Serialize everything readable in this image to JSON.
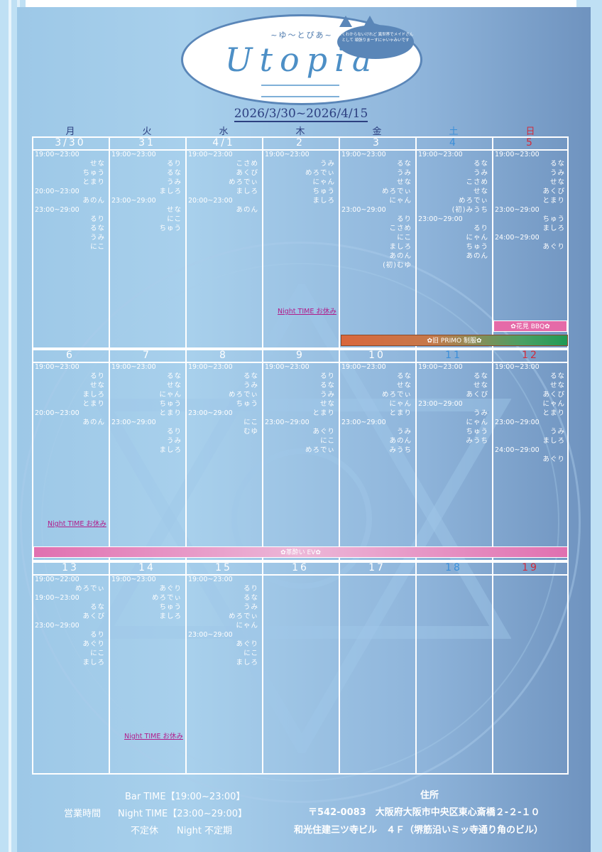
{
  "logo": {
    "subtitle": "~ゆ～とぴあ~",
    "name": "Utopia",
    "bubble_text": "よくわからないけれど 異世界でメイドさんとして 頑張りまーすにゃいゃみいです"
  },
  "date_range": "2026/3/30~2026/4/15",
  "weekdays": [
    "月",
    "火",
    "水",
    "木",
    "金",
    "土",
    "日"
  ],
  "colors": {
    "text_dark": "#2c3f80",
    "saturday": "#3b8fd9",
    "sunday": "#d22a3a",
    "note": "#b11b8a"
  },
  "weeks": [
    {
      "days": [
        {
          "num": "3/30",
          "entries": [
            [
              "t",
              "19:00~23:00"
            ],
            [
              "n",
              "せな"
            ],
            [
              "n",
              "ちゅう"
            ],
            [
              "n",
              "とまり"
            ],
            [
              "t",
              "20:00~23:00"
            ],
            [
              "n",
              "あのん"
            ],
            [
              "t",
              "23:00~29:00"
            ],
            [
              "n",
              "るり"
            ],
            [
              "n",
              "るな"
            ],
            [
              "n",
              "うみ"
            ],
            [
              "n",
              "にこ"
            ]
          ]
        },
        {
          "num": "31",
          "entries": [
            [
              "t",
              "19:00~23:00"
            ],
            [
              "n",
              "るり"
            ],
            [
              "n",
              "るな"
            ],
            [
              "n",
              "うみ"
            ],
            [
              "n",
              "ましろ"
            ],
            [
              "t",
              "23:00~29:00"
            ],
            [
              "n",
              "せな"
            ],
            [
              "n",
              "にこ"
            ],
            [
              "n",
              "ちゅう"
            ]
          ]
        },
        {
          "num": "4/1",
          "entries": [
            [
              "t",
              "19:00~23:00"
            ],
            [
              "n",
              "こさめ"
            ],
            [
              "n",
              "あくび"
            ],
            [
              "n",
              "めろでぃ"
            ],
            [
              "n",
              "ましろ"
            ],
            [
              "t",
              "20:00~23:00"
            ],
            [
              "n",
              "あのん"
            ]
          ]
        },
        {
          "num": "2",
          "entries": [
            [
              "t",
              "19:00~23:00"
            ],
            [
              "n",
              "うみ"
            ],
            [
              "n",
              "めろでぃ"
            ],
            [
              "n",
              "にゃん"
            ],
            [
              "n",
              "ちゅう"
            ],
            [
              "n",
              "ましろ"
            ]
          ]
        },
        {
          "num": "3",
          "entries": [
            [
              "t",
              "19:00~23:00"
            ],
            [
              "n",
              "るな"
            ],
            [
              "n",
              "うみ"
            ],
            [
              "n",
              "せな"
            ],
            [
              "n",
              "めろでぃ"
            ],
            [
              "n",
              "にゃん"
            ],
            [
              "t",
              "23:00~29:00"
            ],
            [
              "n",
              "るり"
            ],
            [
              "n",
              "こさめ"
            ],
            [
              "n",
              "にこ"
            ],
            [
              "n",
              "ましろ"
            ],
            [
              "n",
              "あのん"
            ],
            [
              "n",
              "(初)むゆ"
            ]
          ]
        },
        {
          "num": "4",
          "entries": [
            [
              "t",
              "19:00~23:00"
            ],
            [
              "n",
              "るな"
            ],
            [
              "n",
              "うみ"
            ],
            [
              "n",
              "こさめ"
            ],
            [
              "n",
              "せな"
            ],
            [
              "n",
              "めろでぃ"
            ],
            [
              "n",
              "(初)みうち"
            ],
            [
              "t",
              "23:00~29:00"
            ],
            [
              "n",
              "るり"
            ],
            [
              "n",
              "にゃん"
            ],
            [
              "n",
              "ちゅう"
            ],
            [
              "n",
              "あのん"
            ]
          ]
        },
        {
          "num": "5",
          "entries": [
            [
              "t",
              "19:00~23:00"
            ],
            [
              "n",
              "るな"
            ],
            [
              "n",
              "うみ"
            ],
            [
              "n",
              "せな"
            ],
            [
              "n",
              "あくび"
            ],
            [
              "n",
              "とまり"
            ],
            [
              "t",
              "23:00~29:00"
            ],
            [
              "n",
              "ちゅう"
            ],
            [
              "n",
              "ましろ"
            ],
            [
              "t",
              "24:00~29:00"
            ],
            [
              "n",
              "あぐり"
            ]
          ]
        }
      ]
    },
    {
      "days": [
        {
          "num": "6",
          "entries": [
            [
              "t",
              "19:00~23:00"
            ],
            [
              "n",
              "るり"
            ],
            [
              "n",
              "せな"
            ],
            [
              "n",
              "ましろ"
            ],
            [
              "n",
              "とまり"
            ],
            [
              "t",
              "20:00~23:00"
            ],
            [
              "n",
              "あのん"
            ]
          ]
        },
        {
          "num": "7",
          "entries": [
            [
              "t",
              "19:00~23:00"
            ],
            [
              "n",
              "るな"
            ],
            [
              "n",
              "せな"
            ],
            [
              "n",
              "にゃん"
            ],
            [
              "n",
              "ちゅう"
            ],
            [
              "n",
              "とまり"
            ],
            [
              "t",
              "23:00~29:00"
            ],
            [
              "n",
              "るり"
            ],
            [
              "n",
              "うみ"
            ],
            [
              "n",
              "ましろ"
            ]
          ]
        },
        {
          "num": "8",
          "entries": [
            [
              "t",
              "19:00~23:00"
            ],
            [
              "n",
              "るな"
            ],
            [
              "n",
              "うみ"
            ],
            [
              "n",
              "めろでぃ"
            ],
            [
              "n",
              "ちゅう"
            ],
            [
              "t",
              "23:00~29:00"
            ],
            [
              "n",
              "にこ"
            ],
            [
              "n",
              "むゆ"
            ]
          ]
        },
        {
          "num": "9",
          "entries": [
            [
              "t",
              "19:00~23:00"
            ],
            [
              "n",
              "るり"
            ],
            [
              "n",
              "るな"
            ],
            [
              "n",
              "うみ"
            ],
            [
              "n",
              "せな"
            ],
            [
              "n",
              "とまり"
            ],
            [
              "t",
              "23:00~29:00"
            ],
            [
              "n",
              "あぐり"
            ],
            [
              "n",
              "にこ"
            ],
            [
              "n",
              "めろでぃ"
            ]
          ]
        },
        {
          "num": "10",
          "entries": [
            [
              "t",
              "19:00~23:00"
            ],
            [
              "n",
              "るな"
            ],
            [
              "n",
              "せな"
            ],
            [
              "n",
              "めろでぃ"
            ],
            [
              "n",
              "にゃん"
            ],
            [
              "n",
              "とまり"
            ],
            [
              "t",
              "23:00~29:00"
            ],
            [
              "n",
              "うみ"
            ],
            [
              "n",
              "あのん"
            ],
            [
              "n",
              "みうち"
            ]
          ]
        },
        {
          "num": "11",
          "entries": [
            [
              "t",
              "19:00~23:00"
            ],
            [
              "n",
              "るな"
            ],
            [
              "n",
              "せな"
            ],
            [
              "n",
              "あくび"
            ],
            [
              "t",
              "23:00~29:00"
            ],
            [
              "n",
              "うみ"
            ],
            [
              "n",
              "にゃん"
            ],
            [
              "n",
              "ちゅう"
            ],
            [
              "n",
              "みうち"
            ]
          ]
        },
        {
          "num": "12",
          "entries": [
            [
              "t",
              "19:00~23:00"
            ],
            [
              "n",
              "るな"
            ],
            [
              "n",
              "せな"
            ],
            [
              "n",
              "あくび"
            ],
            [
              "n",
              "にゃん"
            ],
            [
              "n",
              "とまり"
            ],
            [
              "t",
              "23:00~29:00"
            ],
            [
              "n",
              "うみ"
            ],
            [
              "n",
              "ましろ"
            ],
            [
              "t",
              "24:00~29:00"
            ],
            [
              "n",
              "あぐり"
            ]
          ]
        }
      ]
    },
    {
      "days": [
        {
          "num": "13",
          "entries": [
            [
              "t",
              "19:00~22:00"
            ],
            [
              "n",
              "めろでぃ"
            ],
            [
              "t",
              "19:00~23:00"
            ],
            [
              "n",
              "るな"
            ],
            [
              "n",
              "あくび"
            ],
            [
              "t",
              "23:00~29:00"
            ],
            [
              "n",
              "るり"
            ],
            [
              "n",
              "あぐり"
            ],
            [
              "n",
              "にこ"
            ],
            [
              "n",
              "ましろ"
            ]
          ]
        },
        {
          "num": "14",
          "entries": [
            [
              "t",
              "19:00~23:00"
            ],
            [
              "n",
              "あぐり"
            ],
            [
              "n",
              "めろでぃ"
            ],
            [
              "n",
              "ちゅう"
            ],
            [
              "n",
              "ましろ"
            ]
          ]
        },
        {
          "num": "15",
          "entries": [
            [
              "t",
              "19:00~23:00"
            ],
            [
              "n",
              "るり"
            ],
            [
              "n",
              "るな"
            ],
            [
              "n",
              "うみ"
            ],
            [
              "n",
              "めろでぃ"
            ],
            [
              "n",
              "にゃん"
            ],
            [
              "t",
              "23:00~29:00"
            ],
            [
              "n",
              "あぐり"
            ],
            [
              "n",
              "にこ"
            ],
            [
              "n",
              "ましろ"
            ]
          ]
        },
        {
          "num": "16",
          "entries": []
        },
        {
          "num": "17",
          "entries": []
        },
        {
          "num": "18",
          "entries": []
        },
        {
          "num": "19",
          "entries": []
        }
      ]
    }
  ],
  "notes": {
    "night_off_1": "Night TIME お休み",
    "night_off_2": "Night TIME お休み",
    "night_off_3": "Night TIME お休み"
  },
  "events": {
    "hanami": "✿花見 BBQ✿",
    "primo": "✿旧 PRIMO 制服✿",
    "ev": "✿革酔い EV✿"
  },
  "footer": {
    "hours_label": "営業時間",
    "bar_time": "Bar TIME【19:00~23:00】",
    "night_time": "Night TIME【23:00~29:00】",
    "irregular": "不定休　　Night 不定期",
    "address_label": "住所",
    "address1": "〒542-0083　大阪府大阪市中央区東心斎橋２-２-１０",
    "address2": "和光住建三ツ寺ビル　４Ｆ（堺筋沿いミッ寺通り角のビル）"
  }
}
